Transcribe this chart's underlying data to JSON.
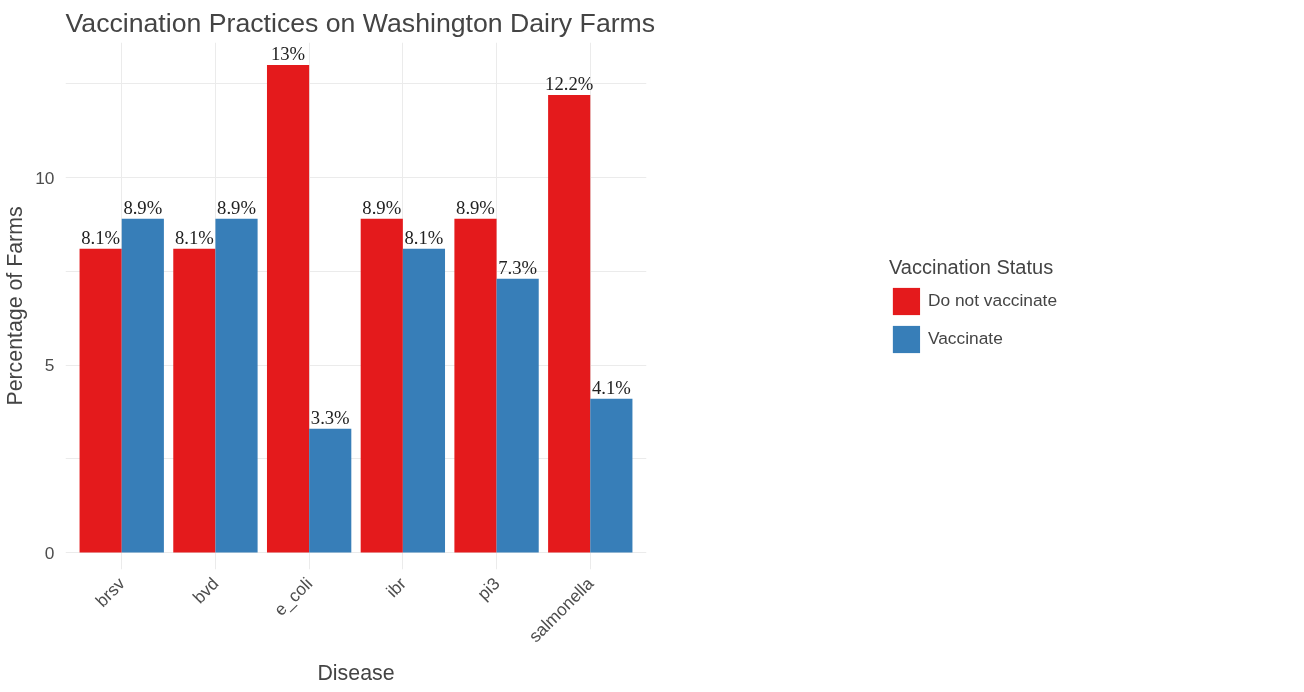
{
  "chart_data": {
    "type": "bar",
    "title": "Vaccination Practices on Washington Dairy Farms",
    "xlabel": "Disease",
    "ylabel": "Percentage of Farms",
    "legend_title": "Vaccination Status",
    "categories": [
      "brsv",
      "bvd",
      "e_coli",
      "ibr",
      "pi3",
      "salmonella"
    ],
    "series": [
      {
        "name": "Do not vaccinate",
        "color": "#e41a1c",
        "values": [
          8.1,
          8.1,
          13,
          8.9,
          8.9,
          12.2
        ],
        "value_labels": [
          "8.1%",
          "8.1%",
          "13%",
          "8.9%",
          "8.9%",
          "12.2%"
        ]
      },
      {
        "name": "Vaccinate",
        "color": "#377eb8",
        "values": [
          8.9,
          8.9,
          3.3,
          8.1,
          7.3,
          4.1
        ],
        "value_labels": [
          "8.9%",
          "8.9%",
          "3.3%",
          "8.1%",
          "7.3%",
          "4.1%"
        ]
      }
    ],
    "ylim": [
      -0.45,
      13.6
    ],
    "yticks": [
      0,
      {
        "value": 2.5,
        "label": null
      },
      5,
      {
        "value": 7.5,
        "label": null
      },
      10,
      {
        "value": 12.5,
        "label": null
      }
    ],
    "grid": true,
    "legend": "right"
  }
}
